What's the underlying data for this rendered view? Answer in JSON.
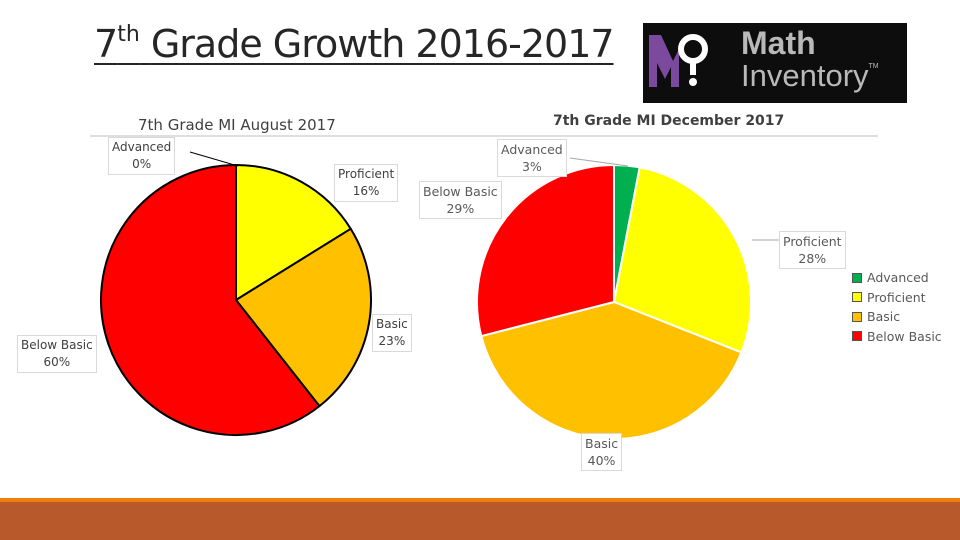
{
  "slide": {
    "title_number": "7",
    "title_sup": "th",
    "title_rest": "Grade Growth 2016-2017"
  },
  "logo": {
    "word1": "Math",
    "word2": "Inventory",
    "tm": "TM",
    "colors": {
      "m": "#7b4a9e",
      "background": "#0d0d0d",
      "text": "#b9b9b9"
    }
  },
  "chart_data": [
    {
      "type": "pie",
      "title": "7th Grade MI August 2017",
      "slices": [
        {
          "label": "Advanced",
          "value": 0,
          "display": "0%",
          "color": "#00b050"
        },
        {
          "label": "Proficient",
          "value": 16,
          "display": "16%",
          "color": "#ffff00"
        },
        {
          "label": "Basic",
          "value": 23,
          "display": "23%",
          "color": "#ffc000"
        },
        {
          "label": "Below Basic",
          "value": 60,
          "display": "60%",
          "color": "#ff0000"
        }
      ],
      "legend": "none"
    },
    {
      "type": "pie",
      "title": "7th Grade MI December 2017",
      "slices": [
        {
          "label": "Advanced",
          "value": 3,
          "display": "3%",
          "color": "#00b050"
        },
        {
          "label": "Proficient",
          "value": 28,
          "display": "28%",
          "color": "#ffff00"
        },
        {
          "label": "Basic",
          "value": 40,
          "display": "40%",
          "color": "#ffc000"
        },
        {
          "label": "Below Basic",
          "value": 29,
          "display": "29%",
          "color": "#ff0000"
        }
      ],
      "legend": "right",
      "legend_entries": [
        "Advanced",
        "Proficient",
        "Basic",
        "Below Basic"
      ]
    }
  ],
  "theme": {
    "footer_line": "#f07f09",
    "footer_band": "#b7592a"
  }
}
